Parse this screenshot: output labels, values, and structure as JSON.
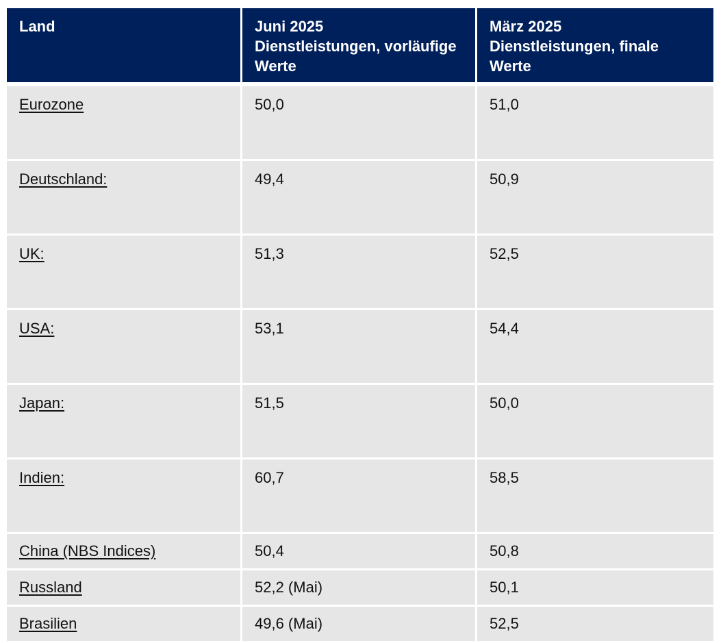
{
  "header": {
    "col1": "Land",
    "col2_line1": "Juni 2025",
    "col2_line2": "Dienstleistungen, vorläufige",
    "col2_line3": "Werte",
    "col3_line1": "März 2025",
    "col3_line2": "Dienstleistungen, finale",
    "col3_line3": "Werte"
  },
  "rows": [
    {
      "land": "Eurozone",
      "juni": "50,0",
      "maerz": "51,0"
    },
    {
      "land": "Deutschland:",
      "juni": "49,4",
      "maerz": "50,9"
    },
    {
      "land": "UK:",
      "juni": "51,3",
      "maerz": "52,5"
    },
    {
      "land": "USA:",
      "juni": "53,1",
      "maerz": "54,4"
    },
    {
      "land": "Japan:",
      "juni": "51,5",
      "maerz": "50,0"
    },
    {
      "land": "Indien:",
      "juni": "60,7",
      "maerz": "58,5"
    },
    {
      "land": "China (NBS Indices)",
      "juni": "50,4",
      "maerz": "50,8"
    },
    {
      "land": "Russland",
      "juni": "52,2 (Mai)",
      "maerz": "50,1"
    },
    {
      "land": "Brasilien",
      "juni": "49,6 (Mai)",
      "maerz": "52,5"
    }
  ],
  "colors": {
    "header_bg": "#00205c",
    "row_bg": "#e6e6e6"
  }
}
